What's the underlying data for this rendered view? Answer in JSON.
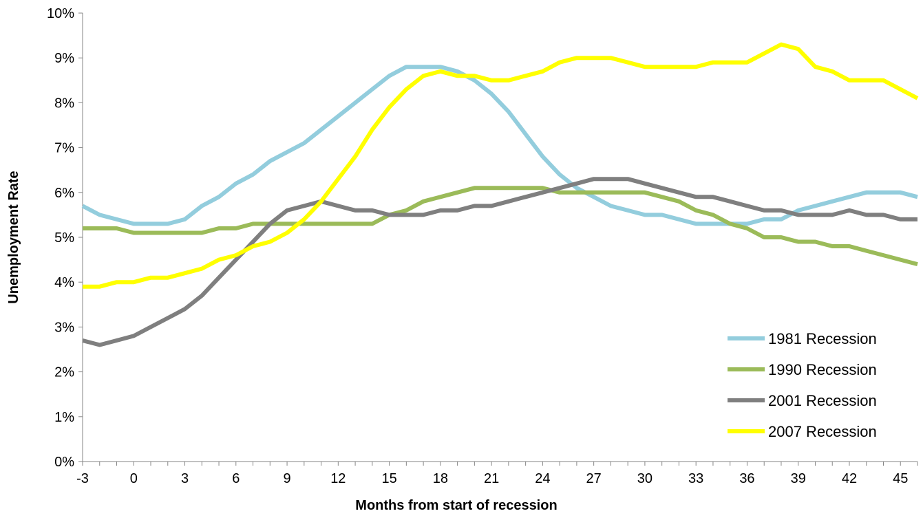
{
  "chart_data": {
    "type": "line",
    "title": "",
    "xlabel": "Months from start of recession",
    "ylabel": "Unemployment Rate",
    "xlim": [
      -3,
      46
    ],
    "ylim": [
      0,
      10
    ],
    "x_ticks": [
      -3,
      0,
      3,
      6,
      9,
      12,
      15,
      18,
      21,
      24,
      27,
      30,
      33,
      36,
      39,
      42,
      45
    ],
    "x_tick_labels": [
      "-3",
      "0",
      "3",
      "6",
      "9",
      "12",
      "15",
      "18",
      "21",
      "24",
      "27",
      "30",
      "33",
      "36",
      "39",
      "42",
      "45"
    ],
    "y_ticks": [
      0,
      1,
      2,
      3,
      4,
      5,
      6,
      7,
      8,
      9,
      10
    ],
    "y_tick_labels": [
      "0%",
      "1%",
      "2%",
      "3%",
      "4%",
      "5%",
      "6%",
      "7%",
      "8%",
      "9%",
      "10%"
    ],
    "grid": false,
    "legend_position": "bottom-right",
    "x": [
      -3,
      -2,
      -1,
      0,
      1,
      2,
      3,
      4,
      5,
      6,
      7,
      8,
      9,
      10,
      11,
      12,
      13,
      14,
      15,
      16,
      17,
      18,
      19,
      20,
      21,
      22,
      23,
      24,
      25,
      26,
      27,
      28,
      29,
      30,
      31,
      32,
      33,
      34,
      35,
      36,
      37,
      38,
      39,
      40,
      41,
      42,
      43,
      44,
      45,
      46
    ],
    "series": [
      {
        "name": "1981 Recession",
        "color": "#93CDDD",
        "values": [
          5.7,
          5.5,
          5.4,
          5.3,
          5.3,
          5.3,
          5.4,
          5.7,
          5.9,
          6.2,
          6.4,
          6.7,
          6.9,
          7.1,
          7.4,
          7.7,
          8.0,
          8.3,
          8.6,
          8.8,
          8.8,
          8.8,
          8.7,
          8.5,
          8.2,
          7.8,
          7.3,
          6.8,
          6.4,
          6.1,
          5.9,
          5.7,
          5.6,
          5.5,
          5.5,
          5.4,
          5.3,
          5.3,
          5.3,
          5.3,
          5.4,
          5.4,
          5.6,
          5.7,
          5.8,
          5.9,
          6.0,
          6.0,
          6.0,
          5.9
        ]
      },
      {
        "name": "1990 Recession",
        "color": "#9BBB59",
        "values": [
          5.2,
          5.2,
          5.2,
          5.1,
          5.1,
          5.1,
          5.1,
          5.1,
          5.2,
          5.2,
          5.3,
          5.3,
          5.3,
          5.3,
          5.3,
          5.3,
          5.3,
          5.3,
          5.5,
          5.6,
          5.8,
          5.9,
          6.0,
          6.1,
          6.1,
          6.1,
          6.1,
          6.1,
          6.0,
          6.0,
          6.0,
          6.0,
          6.0,
          6.0,
          5.9,
          5.8,
          5.6,
          5.5,
          5.3,
          5.2,
          5.0,
          5.0,
          4.9,
          4.9,
          4.8,
          4.8,
          4.7,
          4.6,
          4.5,
          4.4
        ]
      },
      {
        "name": "2001 Recession",
        "color": "#7F7F7F",
        "values": [
          2.7,
          2.6,
          2.7,
          2.8,
          3.0,
          3.2,
          3.4,
          3.7,
          4.1,
          4.5,
          4.9,
          5.3,
          5.6,
          5.7,
          5.8,
          5.7,
          5.6,
          5.6,
          5.5,
          5.5,
          5.5,
          5.6,
          5.6,
          5.7,
          5.7,
          5.8,
          5.9,
          6.0,
          6.1,
          6.2,
          6.3,
          6.3,
          6.3,
          6.2,
          6.1,
          6.0,
          5.9,
          5.9,
          5.8,
          5.7,
          5.6,
          5.6,
          5.5,
          5.5,
          5.5,
          5.6,
          5.5,
          5.5,
          5.4,
          5.4
        ]
      },
      {
        "name": "2007 Recession",
        "color": "#FFFF00",
        "values": [
          3.9,
          3.9,
          4.0,
          4.0,
          4.1,
          4.1,
          4.2,
          4.3,
          4.5,
          4.6,
          4.8,
          4.9,
          5.1,
          5.4,
          5.8,
          6.3,
          6.8,
          7.4,
          7.9,
          8.3,
          8.6,
          8.7,
          8.6,
          8.6,
          8.5,
          8.5,
          8.6,
          8.7,
          8.9,
          9.0,
          9.0,
          9.0,
          8.9,
          8.8,
          8.8,
          8.8,
          8.8,
          8.9,
          8.9,
          8.9,
          9.1,
          9.3,
          9.2,
          8.8,
          8.7,
          8.5,
          8.5,
          8.5,
          8.3,
          8.1
        ]
      }
    ]
  }
}
